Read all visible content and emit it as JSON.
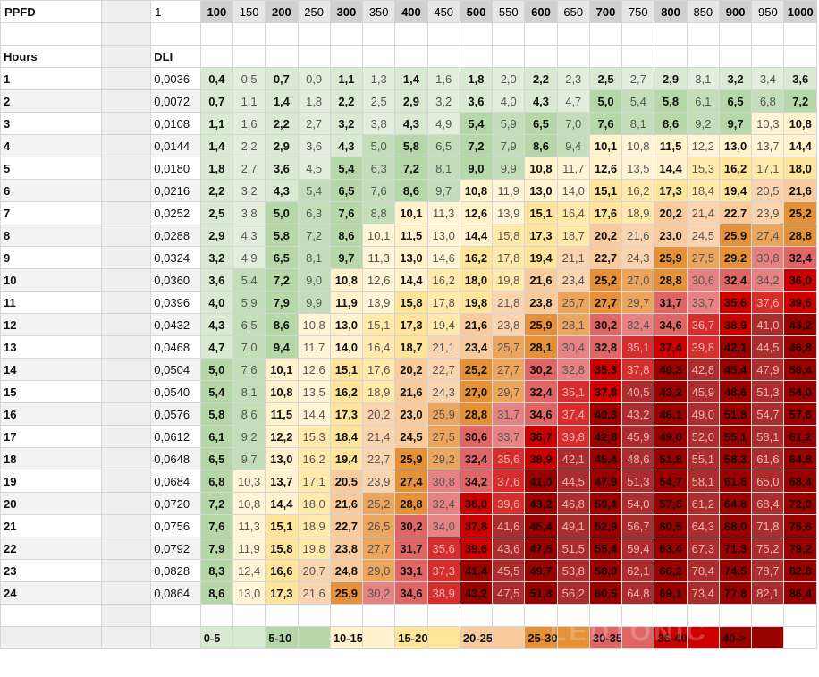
{
  "header": {
    "ppfd_label": "PPFD",
    "first_value": "1",
    "ppfd_values": [
      "100",
      "150",
      "200",
      "250",
      "300",
      "350",
      "400",
      "450",
      "500",
      "550",
      "600",
      "650",
      "700",
      "750",
      "800",
      "850",
      "900",
      "950",
      "1000"
    ]
  },
  "subheader": {
    "hours_label": "Hours",
    "dli_label": "DLI"
  },
  "rows": [
    {
      "hour": "1",
      "dli": "0,0036",
      "values": [
        "0,4",
        "0,5",
        "0,7",
        "0,9",
        "1,1",
        "1,3",
        "1,4",
        "1,6",
        "1,8",
        "2,0",
        "2,2",
        "2,3",
        "2,5",
        "2,7",
        "2,9",
        "3,1",
        "3,2",
        "3,4",
        "3,6"
      ]
    },
    {
      "hour": "2",
      "dli": "0,0072",
      "values": [
        "0,7",
        "1,1",
        "1,4",
        "1,8",
        "2,2",
        "2,5",
        "2,9",
        "3,2",
        "3,6",
        "4,0",
        "4,3",
        "4,7",
        "5,0",
        "5,4",
        "5,8",
        "6,1",
        "6,5",
        "6,8",
        "7,2"
      ]
    },
    {
      "hour": "3",
      "dli": "0,0108",
      "values": [
        "1,1",
        "1,6",
        "2,2",
        "2,7",
        "3,2",
        "3,8",
        "4,3",
        "4,9",
        "5,4",
        "5,9",
        "6,5",
        "7,0",
        "7,6",
        "8,1",
        "8,6",
        "9,2",
        "9,7",
        "10,3",
        "10,8"
      ]
    },
    {
      "hour": "4",
      "dli": "0,0144",
      "values": [
        "1,4",
        "2,2",
        "2,9",
        "3,6",
        "4,3",
        "5,0",
        "5,8",
        "6,5",
        "7,2",
        "7,9",
        "8,6",
        "9,4",
        "10,1",
        "10,8",
        "11,5",
        "12,2",
        "13,0",
        "13,7",
        "14,4"
      ]
    },
    {
      "hour": "5",
      "dli": "0,0180",
      "values": [
        "1,8",
        "2,7",
        "3,6",
        "4,5",
        "5,4",
        "6,3",
        "7,2",
        "8,1",
        "9,0",
        "9,9",
        "10,8",
        "11,7",
        "12,6",
        "13,5",
        "14,4",
        "15,3",
        "16,2",
        "17,1",
        "18,0"
      ]
    },
    {
      "hour": "6",
      "dli": "0,0216",
      "values": [
        "2,2",
        "3,2",
        "4,3",
        "5,4",
        "6,5",
        "7,6",
        "8,6",
        "9,7",
        "10,8",
        "11,9",
        "13,0",
        "14,0",
        "15,1",
        "16,2",
        "17,3",
        "18,4",
        "19,4",
        "20,5",
        "21,6"
      ]
    },
    {
      "hour": "7",
      "dli": "0,0252",
      "values": [
        "2,5",
        "3,8",
        "5,0",
        "6,3",
        "7,6",
        "8,8",
        "10,1",
        "11,3",
        "12,6",
        "13,9",
        "15,1",
        "16,4",
        "17,6",
        "18,9",
        "20,2",
        "21,4",
        "22,7",
        "23,9",
        "25,2"
      ]
    },
    {
      "hour": "8",
      "dli": "0,0288",
      "values": [
        "2,9",
        "4,3",
        "5,8",
        "7,2",
        "8,6",
        "10,1",
        "11,5",
        "13,0",
        "14,4",
        "15,8",
        "17,3",
        "18,7",
        "20,2",
        "21,6",
        "23,0",
        "24,5",
        "25,9",
        "27,4",
        "28,8"
      ]
    },
    {
      "hour": "9",
      "dli": "0,0324",
      "values": [
        "3,2",
        "4,9",
        "6,5",
        "8,1",
        "9,7",
        "11,3",
        "13,0",
        "14,6",
        "16,2",
        "17,8",
        "19,4",
        "21,1",
        "22,7",
        "24,3",
        "25,9",
        "27,5",
        "29,2",
        "30,8",
        "32,4"
      ]
    },
    {
      "hour": "10",
      "dli": "0,0360",
      "values": [
        "3,6",
        "5,4",
        "7,2",
        "9,0",
        "10,8",
        "12,6",
        "14,4",
        "16,2",
        "18,0",
        "19,8",
        "21,6",
        "23,4",
        "25,2",
        "27,0",
        "28,8",
        "30,6",
        "32,4",
        "34,2",
        "36,0"
      ]
    },
    {
      "hour": "11",
      "dli": "0,0396",
      "values": [
        "4,0",
        "5,9",
        "7,9",
        "9,9",
        "11,9",
        "13,9",
        "15,8",
        "17,8",
        "19,8",
        "21,8",
        "23,8",
        "25,7",
        "27,7",
        "29,7",
        "31,7",
        "33,7",
        "35,6",
        "37,6",
        "39,6"
      ]
    },
    {
      "hour": "12",
      "dli": "0,0432",
      "values": [
        "4,3",
        "6,5",
        "8,6",
        "10,8",
        "13,0",
        "15,1",
        "17,3",
        "19,4",
        "21,6",
        "23,8",
        "25,9",
        "28,1",
        "30,2",
        "32,4",
        "34,6",
        "36,7",
        "38,9",
        "41,0",
        "43,2"
      ]
    },
    {
      "hour": "13",
      "dli": "0,0468",
      "values": [
        "4,7",
        "7,0",
        "9,4",
        "11,7",
        "14,0",
        "16,4",
        "18,7",
        "21,1",
        "23,4",
        "25,7",
        "28,1",
        "30,4",
        "32,8",
        "35,1",
        "37,4",
        "39,8",
        "42,1",
        "44,5",
        "46,8"
      ]
    },
    {
      "hour": "14",
      "dli": "0,0504",
      "values": [
        "5,0",
        "7,6",
        "10,1",
        "12,6",
        "15,1",
        "17,6",
        "20,2",
        "22,7",
        "25,2",
        "27,7",
        "30,2",
        "32,8",
        "35,3",
        "37,8",
        "40,3",
        "42,8",
        "45,4",
        "47,9",
        "50,4"
      ]
    },
    {
      "hour": "15",
      "dli": "0,0540",
      "values": [
        "5,4",
        "8,1",
        "10,8",
        "13,5",
        "16,2",
        "18,9",
        "21,6",
        "24,3",
        "27,0",
        "29,7",
        "32,4",
        "35,1",
        "37,8",
        "40,5",
        "43,2",
        "45,9",
        "48,6",
        "51,3",
        "54,0"
      ]
    },
    {
      "hour": "16",
      "dli": "0,0576",
      "values": [
        "5,8",
        "8,6",
        "11,5",
        "14,4",
        "17,3",
        "20,2",
        "23,0",
        "25,9",
        "28,8",
        "31,7",
        "34,6",
        "37,4",
        "40,3",
        "43,2",
        "46,1",
        "49,0",
        "51,8",
        "54,7",
        "57,6"
      ]
    },
    {
      "hour": "17",
      "dli": "0,0612",
      "values": [
        "6,1",
        "9,2",
        "12,2",
        "15,3",
        "18,4",
        "21,4",
        "24,5",
        "27,5",
        "30,6",
        "33,7",
        "36,7",
        "39,8",
        "42,8",
        "45,9",
        "49,0",
        "52,0",
        "55,1",
        "58,1",
        "61,2"
      ]
    },
    {
      "hour": "18",
      "dli": "0,0648",
      "values": [
        "6,5",
        "9,7",
        "13,0",
        "16,2",
        "19,4",
        "22,7",
        "25,9",
        "29,2",
        "32,4",
        "35,6",
        "38,9",
        "42,1",
        "45,4",
        "48,6",
        "51,8",
        "55,1",
        "58,3",
        "61,6",
        "64,8"
      ]
    },
    {
      "hour": "19",
      "dli": "0,0684",
      "values": [
        "6,8",
        "10,3",
        "13,7",
        "17,1",
        "20,5",
        "23,9",
        "27,4",
        "30,8",
        "34,2",
        "37,6",
        "41,0",
        "44,5",
        "47,9",
        "51,3",
        "54,7",
        "58,1",
        "61,6",
        "65,0",
        "68,4"
      ]
    },
    {
      "hour": "20",
      "dli": "0,0720",
      "values": [
        "7,2",
        "10,8",
        "14,4",
        "18,0",
        "21,6",
        "25,2",
        "28,8",
        "32,4",
        "36,0",
        "39,6",
        "43,2",
        "46,8",
        "50,4",
        "54,0",
        "57,6",
        "61,2",
        "64,8",
        "68,4",
        "72,0"
      ]
    },
    {
      "hour": "21",
      "dli": "0,0756",
      "values": [
        "7,6",
        "11,3",
        "15,1",
        "18,9",
        "22,7",
        "26,5",
        "30,2",
        "34,0",
        "37,8",
        "41,6",
        "45,4",
        "49,1",
        "52,9",
        "56,7",
        "60,5",
        "64,3",
        "68,0",
        "71,8",
        "75,6"
      ]
    },
    {
      "hour": "22",
      "dli": "0,0792",
      "values": [
        "7,9",
        "11,9",
        "15,8",
        "19,8",
        "23,8",
        "27,7",
        "31,7",
        "35,6",
        "39,6",
        "43,6",
        "47,5",
        "51,5",
        "55,4",
        "59,4",
        "63,4",
        "67,3",
        "71,3",
        "75,2",
        "79,2"
      ]
    },
    {
      "hour": "23",
      "dli": "0,0828",
      "values": [
        "8,3",
        "12,4",
        "16,6",
        "20,7",
        "24,8",
        "29,0",
        "33,1",
        "37,3",
        "41,4",
        "45,5",
        "49,7",
        "53,8",
        "58,0",
        "62,1",
        "66,2",
        "70,4",
        "74,5",
        "78,7",
        "82,8"
      ]
    },
    {
      "hour": "24",
      "dli": "0,0864",
      "values": [
        "8,6",
        "13,0",
        "17,3",
        "21,6",
        "25,9",
        "30,2",
        "34,6",
        "38,9",
        "43,2",
        "47,5",
        "51,8",
        "56,2",
        "60,5",
        "64,8",
        "69,1",
        "73,4",
        "77,8",
        "82,1",
        "86,4"
      ]
    }
  ],
  "legend": [
    {
      "label": "0-5",
      "color": "#d9ead3"
    },
    {
      "label": "5-10",
      "color": "#b6d7a8"
    },
    {
      "label": "10-15",
      "color": "#fff2cc"
    },
    {
      "label": "15-20",
      "color": "#ffe599"
    },
    {
      "label": "20-25",
      "color": "#f9cb9c"
    },
    {
      "label": "25-30",
      "color": "#e69138"
    },
    {
      "label": "30-35",
      "color": "#e06666"
    },
    {
      "label": "35-40",
      "color": "#cc0000"
    },
    {
      "label": "40->",
      "color": "#990000"
    }
  ],
  "colors": {
    "0-5": "#d9ead3",
    "5-10": "#b6d7a8",
    "10-15": "#fff2cc",
    "15-20": "#ffe599",
    "20-25": "#f9cb9c",
    "25-30": "#e69138",
    "30-35": "#e06666",
    "35-40": "#cc0000",
    "40->": "#990000",
    "header_band": "#d9d9d9"
  },
  "watermark": "LEDTONIC"
}
